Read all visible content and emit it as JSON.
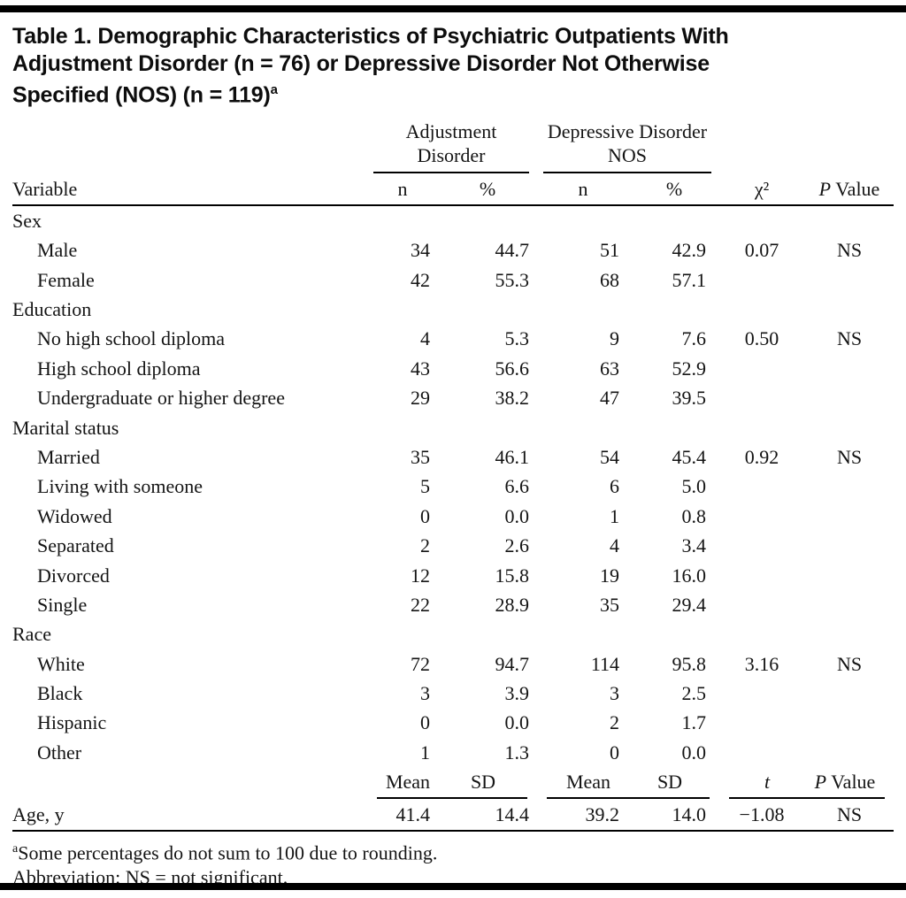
{
  "page": {
    "title_lines": [
      "Table 1. Demographic Characteristics of Psychiatric Outpatients With",
      "Adjustment Disorder (n = 76) or Depressive Disorder Not Otherwise",
      "Specified (NOS) (n = 119)"
    ],
    "title_footnote_marker": "a"
  },
  "table": {
    "col_groups": {
      "group1": "Adjustment Disorder",
      "group2": "Depressive Disorder NOS"
    },
    "headers": {
      "variable": "Variable",
      "n1": "n",
      "pct1": "%",
      "n2": "n",
      "pct2": "%",
      "chi_square": "χ²",
      "p_italic": "P",
      "p_word": "Value"
    },
    "rows": [
      {
        "type": "group",
        "label": "Sex"
      },
      {
        "type": "item",
        "label": "Male",
        "n1": "34",
        "pct1": "44.7",
        "n2": "51",
        "pct2": "42.9",
        "chi2": "0.07",
        "p": "NS"
      },
      {
        "type": "item",
        "label": "Female",
        "n1": "42",
        "pct1": "55.3",
        "n2": "68",
        "pct2": "57.1"
      },
      {
        "type": "group",
        "label": "Education"
      },
      {
        "type": "item",
        "label": "No high school diploma",
        "n1": "4",
        "pct1": "5.3",
        "n2": "9",
        "pct2": "7.6",
        "chi2": "0.50",
        "p": "NS"
      },
      {
        "type": "item",
        "label": "High school diploma",
        "n1": "43",
        "pct1": "56.6",
        "n2": "63",
        "pct2": "52.9"
      },
      {
        "type": "item",
        "label": "Undergraduate or higher degree",
        "n1": "29",
        "pct1": "38.2",
        "n2": "47",
        "pct2": "39.5"
      },
      {
        "type": "group",
        "label": "Marital status"
      },
      {
        "type": "item",
        "label": "Married",
        "n1": "35",
        "pct1": "46.1",
        "n2": "54",
        "pct2": "45.4",
        "chi2": "0.92",
        "p": "NS"
      },
      {
        "type": "item",
        "label": "Living with someone",
        "n1": "5",
        "pct1": "6.6",
        "n2": "6",
        "pct2": "5.0"
      },
      {
        "type": "item",
        "label": "Widowed",
        "n1": "0",
        "pct1": "0.0",
        "n2": "1",
        "pct2": "0.8"
      },
      {
        "type": "item",
        "label": "Separated",
        "n1": "2",
        "pct1": "2.6",
        "n2": "4",
        "pct2": "3.4"
      },
      {
        "type": "item",
        "label": "Divorced",
        "n1": "12",
        "pct1": "15.8",
        "n2": "19",
        "pct2": "16.0"
      },
      {
        "type": "item",
        "label": "Single",
        "n1": "22",
        "pct1": "28.9",
        "n2": "35",
        "pct2": "29.4"
      },
      {
        "type": "group",
        "label": "Race"
      },
      {
        "type": "item",
        "label": "White",
        "n1": "72",
        "pct1": "94.7",
        "n2": "114",
        "pct2": "95.8",
        "chi2": "3.16",
        "p": "NS"
      },
      {
        "type": "item",
        "label": "Black",
        "n1": "3",
        "pct1": "3.9",
        "n2": "3",
        "pct2": "2.5"
      },
      {
        "type": "item",
        "label": "Hispanic",
        "n1": "0",
        "pct1": "0.0",
        "n2": "2",
        "pct2": "1.7"
      },
      {
        "type": "item",
        "label": "Other",
        "n1": "1",
        "pct1": "1.3",
        "n2": "0",
        "pct2": "0.0"
      }
    ],
    "stats_headers": {
      "mean1": "Mean",
      "sd1": "SD",
      "mean2": "Mean",
      "sd2": "SD",
      "t_italic": "t",
      "p_italic": "P",
      "p_word": "Value"
    },
    "age_row": {
      "label": "Age, y",
      "mean1": "41.4",
      "sd1": "14.4",
      "mean2": "39.2",
      "sd2": "14.0",
      "t": "−1.08",
      "p": "NS"
    }
  },
  "footnotes": {
    "note_a_marker": "a",
    "note_a": "Some percentages do not sum to 100 due to rounding.",
    "abbreviation": "Abbreviation: NS = not significant."
  }
}
